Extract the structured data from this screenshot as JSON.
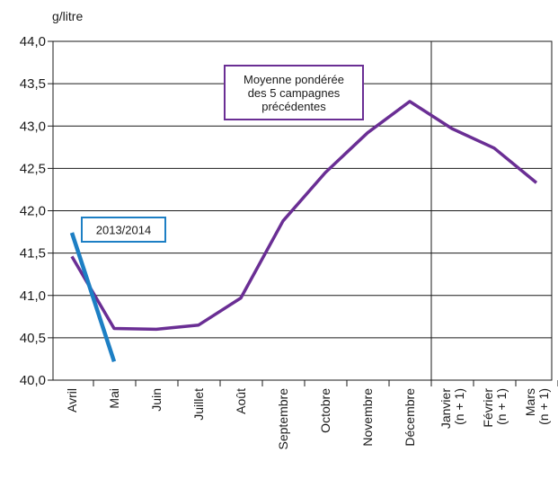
{
  "chart_data": {
    "type": "line",
    "ylabel": "g/litre",
    "ylim": [
      40.0,
      44.0
    ],
    "yticks": [
      "40,0",
      "40,5",
      "41,0",
      "41,5",
      "42,0",
      "42,5",
      "43,0",
      "43,5",
      "44,0"
    ],
    "categories": [
      [
        "Avril"
      ],
      [
        "Mai"
      ],
      [
        "Juin"
      ],
      [
        "Juillet"
      ],
      [
        "Août"
      ],
      [
        "Septembre"
      ],
      [
        "Octobre"
      ],
      [
        "Novembre"
      ],
      [
        "Décembre"
      ],
      [
        "Janvier",
        "(n + 1)"
      ],
      [
        "Février",
        "(n + 1)"
      ],
      [
        "Mars",
        "(n + 1)"
      ]
    ],
    "grid": true,
    "series": [
      {
        "name": "Moyenne pondérée des 5 campagnes précédentes",
        "color": "#6a2e94",
        "values": [
          41.46,
          40.61,
          40.6,
          40.65,
          40.97,
          41.88,
          42.45,
          42.92,
          43.29,
          42.97,
          42.74,
          42.33
        ]
      },
      {
        "name": "2013/2014",
        "color": "#1d7fc4",
        "values": [
          41.74,
          40.22,
          null,
          null,
          null,
          null,
          null,
          null,
          null,
          null,
          null,
          null
        ]
      }
    ],
    "annotations": [
      {
        "lines": [
          "Moyenne pondérée",
          "des 5 campagnes",
          "précédentes"
        ],
        "series": 0
      },
      {
        "lines": [
          "2013/2014"
        ],
        "series": 1
      }
    ],
    "separator_after": "Décembre"
  }
}
